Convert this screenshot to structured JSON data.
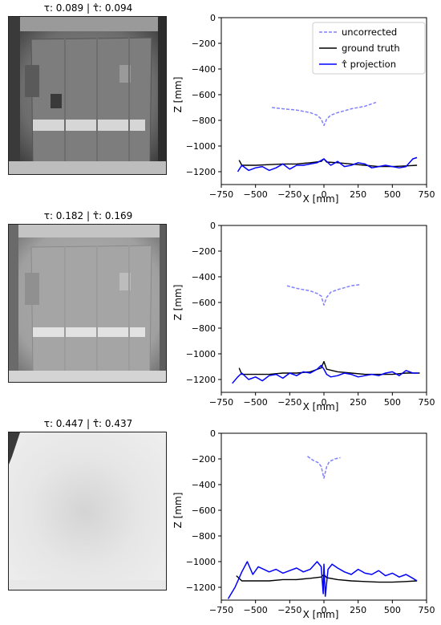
{
  "panels": [
    {
      "image_title": "τ: 0.089 | τ̂: 0.094",
      "image_tone": "dark",
      "chart_data": {
        "type": "line",
        "xlabel": "X [mm]",
        "ylabel": "Z [mm]",
        "xlim": [
          -750,
          750
        ],
        "ylim": [
          -1300,
          0
        ],
        "xticks": [
          "−750",
          "−500",
          "−250",
          "0",
          "250",
          "500",
          "750"
        ],
        "yticks": [
          "0",
          "−200",
          "−400",
          "−600",
          "−800",
          "−1000",
          "−1200"
        ],
        "legend": true,
        "legend_position": "top-right",
        "series": [
          {
            "name": "uncorrected",
            "color": "#8080ff",
            "dashed": true,
            "x": [
              -380,
              -300,
              -200,
              -100,
              -50,
              -20,
              0,
              20,
              50,
              100,
              200,
              300,
              380
            ],
            "y": [
              -700,
              -710,
              -720,
              -740,
              -760,
              -790,
              -840,
              -790,
              -760,
              -740,
              -710,
              -690,
              -660
            ]
          },
          {
            "name": "ground truth",
            "color": "#000000",
            "dashed": false,
            "x": [
              -620,
              -600,
              -500,
              -400,
              -300,
              -200,
              -100,
              -20,
              0,
              20,
              100,
              200,
              300,
              400,
              500,
              600,
              680
            ],
            "y": [
              -1110,
              -1150,
              -1150,
              -1145,
              -1140,
              -1140,
              -1130,
              -1120,
              -1100,
              -1125,
              -1130,
              -1140,
              -1150,
              -1160,
              -1160,
              -1155,
              -1150
            ]
          },
          {
            "name": "τ̂ projection",
            "color": "#0000ff",
            "dashed": false,
            "x": [
              -630,
              -600,
              -550,
              -500,
              -450,
              -400,
              -350,
              -300,
              -250,
              -200,
              -150,
              -100,
              -50,
              0,
              50,
              100,
              150,
              200,
              250,
              300,
              350,
              400,
              450,
              500,
              550,
              600,
              650,
              680
            ],
            "y": [
              -1200,
              -1150,
              -1190,
              -1170,
              -1160,
              -1190,
              -1170,
              -1140,
              -1180,
              -1150,
              -1150,
              -1140,
              -1130,
              -1100,
              -1150,
              -1120,
              -1160,
              -1150,
              -1130,
              -1140,
              -1170,
              -1160,
              -1150,
              -1160,
              -1170,
              -1160,
              -1100,
              -1090
            ]
          }
        ]
      }
    },
    {
      "image_title": "τ: 0.182 | τ̂: 0.169",
      "image_tone": "mid",
      "chart_data": {
        "type": "line",
        "xlabel": "X [mm]",
        "ylabel": "Z [mm]",
        "xlim": [
          -750,
          750
        ],
        "ylim": [
          -1300,
          0
        ],
        "xticks": [
          "−750",
          "−500",
          "−250",
          "0",
          "250",
          "500",
          "750"
        ],
        "yticks": [
          "0",
          "−200",
          "−400",
          "−600",
          "−800",
          "−1000",
          "−1200"
        ],
        "legend": false,
        "series": [
          {
            "name": "uncorrected",
            "color": "#8080ff",
            "dashed": true,
            "x": [
              -270,
              -200,
              -100,
              -50,
              -20,
              0,
              20,
              50,
              100,
              200,
              270
            ],
            "y": [
              -470,
              -490,
              -510,
              -530,
              -550,
              -620,
              -560,
              -520,
              -500,
              -470,
              -460
            ]
          },
          {
            "name": "ground truth",
            "color": "#000000",
            "dashed": false,
            "x": [
              -620,
              -600,
              -500,
              -400,
              -300,
              -200,
              -100,
              -20,
              0,
              20,
              100,
              200,
              300,
              400,
              500,
              600,
              700
            ],
            "y": [
              -1110,
              -1160,
              -1160,
              -1160,
              -1150,
              -1150,
              -1140,
              -1110,
              -1060,
              -1120,
              -1140,
              -1150,
              -1160,
              -1160,
              -1160,
              -1150,
              -1150
            ]
          },
          {
            "name": "τ̂ projection",
            "color": "#0000ff",
            "dashed": false,
            "x": [
              -670,
              -630,
              -600,
              -550,
              -500,
              -450,
              -400,
              -350,
              -300,
              -250,
              -200,
              -150,
              -100,
              -50,
              -20,
              0,
              20,
              50,
              100,
              150,
              200,
              250,
              300,
              350,
              400,
              450,
              500,
              550,
              600,
              650,
              690
            ],
            "y": [
              -1230,
              -1180,
              -1150,
              -1200,
              -1180,
              -1210,
              -1170,
              -1160,
              -1190,
              -1150,
              -1170,
              -1140,
              -1150,
              -1120,
              -1090,
              -1120,
              -1160,
              -1180,
              -1170,
              -1150,
              -1160,
              -1180,
              -1170,
              -1160,
              -1170,
              -1150,
              -1140,
              -1170,
              -1130,
              -1150,
              -1150
            ]
          }
        ]
      }
    },
    {
      "image_title": "τ: 0.447 | τ̂: 0.437",
      "image_tone": "light",
      "chart_data": {
        "type": "line",
        "xlabel": "X [mm]",
        "ylabel": "Z [mm]",
        "xlim": [
          -750,
          750
        ],
        "ylim": [
          -1300,
          0
        ],
        "xticks": [
          "−750",
          "−500",
          "−250",
          "0",
          "250",
          "500",
          "750"
        ],
        "yticks": [
          "0",
          "−200",
          "−400",
          "−600",
          "−800",
          "−1000",
          "−1200"
        ],
        "legend": false,
        "series": [
          {
            "name": "uncorrected",
            "color": "#8080ff",
            "dashed": true,
            "x": [
              -120,
              -80,
              -40,
              -20,
              0,
              20,
              40,
              80,
              120
            ],
            "y": [
              -180,
              -210,
              -230,
              -260,
              -350,
              -260,
              -220,
              -200,
              -190
            ]
          },
          {
            "name": "ground truth",
            "color": "#000000",
            "dashed": false,
            "x": [
              -640,
              -600,
              -500,
              -400,
              -300,
              -200,
              -100,
              -20,
              0,
              20,
              100,
              200,
              300,
              400,
              500,
              600,
              680
            ],
            "y": [
              -1110,
              -1150,
              -1150,
              -1150,
              -1140,
              -1140,
              -1130,
              -1120,
              -1100,
              -1125,
              -1140,
              -1150,
              -1155,
              -1160,
              -1160,
              -1155,
              -1150
            ]
          },
          {
            "name": "τ̂ projection",
            "color": "#0000ff",
            "dashed": false,
            "x": [
              -700,
              -650,
              -600,
              -560,
              -520,
              -480,
              -440,
              -400,
              -350,
              -300,
              -250,
              -200,
              -150,
              -100,
              -50,
              -20,
              -5,
              0,
              10,
              30,
              60,
              100,
              150,
              200,
              250,
              300,
              350,
              400,
              450,
              500,
              550,
              600,
              650,
              680
            ],
            "y": [
              -1290,
              -1200,
              -1080,
              -1000,
              -1100,
              -1040,
              -1060,
              -1080,
              -1060,
              -1090,
              -1070,
              -1050,
              -1080,
              -1060,
              -1000,
              -1040,
              -1250,
              -1020,
              -1270,
              -1060,
              -1020,
              -1050,
              -1080,
              -1100,
              -1060,
              -1090,
              -1100,
              -1070,
              -1110,
              -1090,
              -1120,
              -1100,
              -1130,
              -1150
            ]
          }
        ]
      }
    }
  ]
}
